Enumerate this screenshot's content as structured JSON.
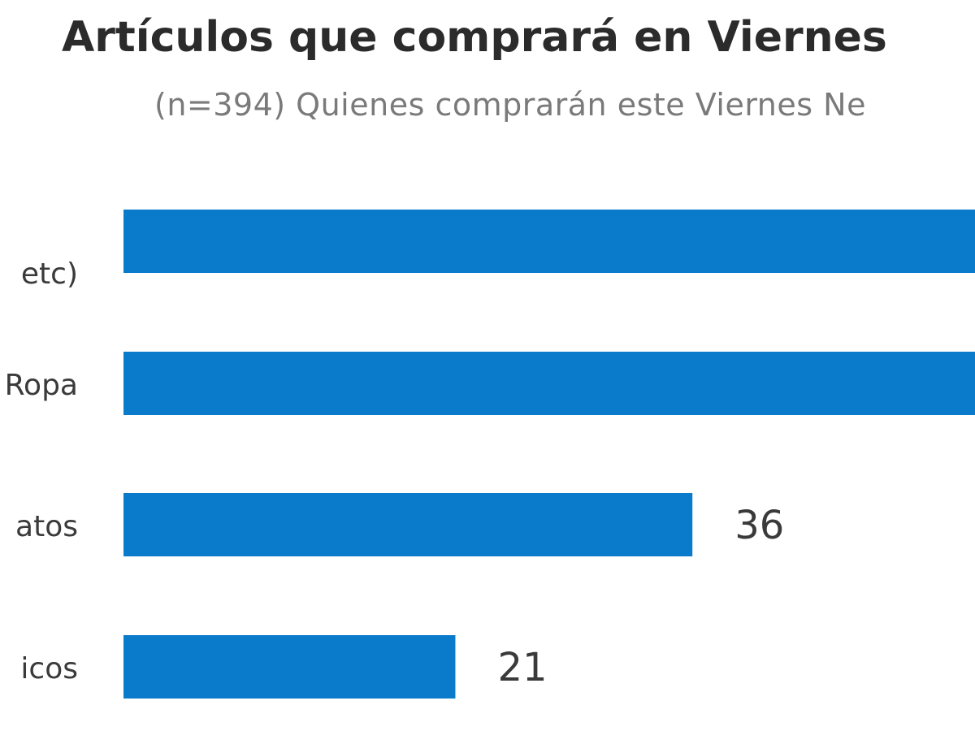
{
  "chart_data": {
    "type": "bar",
    "orientation": "horizontal",
    "title": "Artículos que comprará en Viernes",
    "subtitle": "(n=394) Quienes comprarán este Viernes Ne",
    "categories": [
      "etc)",
      "Ropa",
      "atos",
      "icos"
    ],
    "values": [
      null,
      null,
      36,
      21
    ],
    "data_labels": [
      "",
      "",
      "36",
      "21"
    ],
    "xlim": [
      0,
      54
    ],
    "grid": false,
    "legend": "none",
    "bar_color": "#0a7acb"
  }
}
